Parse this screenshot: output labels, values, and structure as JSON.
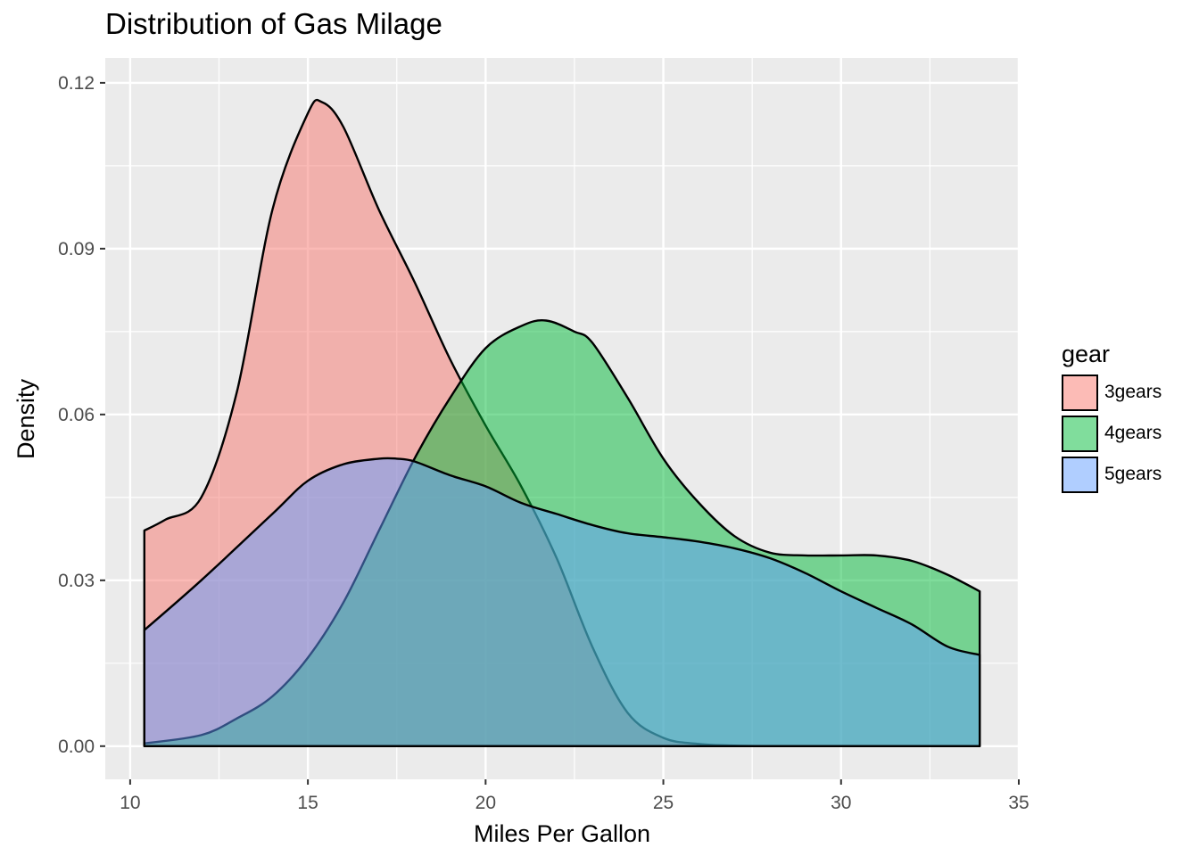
{
  "chart_data": {
    "type": "area",
    "title": "Distribution of Gas Milage",
    "xlabel": "Miles Per Gallon",
    "ylabel": "Density",
    "xlim": [
      9.3,
      35.0
    ],
    "ylim": [
      -0.006,
      0.1245
    ],
    "x_ticks": [
      10,
      15,
      20,
      25,
      30,
      35
    ],
    "y_ticks": [
      0.0,
      0.03,
      0.06,
      0.09,
      0.12
    ],
    "x_tick_labels": [
      "10",
      "15",
      "20",
      "25",
      "30",
      "35"
    ],
    "y_tick_labels": [
      "0.00",
      "0.03",
      "0.06",
      "0.09",
      "0.12"
    ],
    "grid": true,
    "legend_title": "gear",
    "legend_position": "right",
    "series": [
      {
        "name": "3gears",
        "color": "#F8766D",
        "x": [
          10.4,
          11.0,
          12.0,
          13.0,
          14.0,
          15.0,
          15.4,
          16.0,
          17.0,
          18.0,
          19.0,
          20.0,
          21.0,
          22.0,
          23.0,
          24.0,
          25.0,
          26.0,
          27.0,
          28.0,
          30.0,
          33.9
        ],
        "y": [
          0.039,
          0.041,
          0.045,
          0.064,
          0.097,
          0.1145,
          0.1165,
          0.112,
          0.097,
          0.084,
          0.07,
          0.058,
          0.047,
          0.034,
          0.018,
          0.006,
          0.0015,
          0.0004,
          0.0001,
          0.0,
          0.0,
          0.0
        ]
      },
      {
        "name": "4gears",
        "color": "#00BA38",
        "x": [
          10.4,
          12.0,
          13.0,
          14.0,
          15.0,
          16.0,
          17.0,
          18.0,
          19.0,
          20.0,
          21.0,
          21.7,
          22.5,
          23.0,
          24.0,
          25.0,
          26.0,
          27.0,
          28.0,
          29.0,
          30.0,
          31.0,
          32.0,
          33.0,
          33.9
        ],
        "y": [
          0.0005,
          0.002,
          0.005,
          0.009,
          0.016,
          0.026,
          0.039,
          0.052,
          0.063,
          0.072,
          0.076,
          0.077,
          0.075,
          0.073,
          0.063,
          0.052,
          0.044,
          0.038,
          0.035,
          0.0345,
          0.0345,
          0.0345,
          0.0335,
          0.031,
          0.028
        ]
      },
      {
        "name": "5gears",
        "color": "#619CFF",
        "x": [
          10.4,
          12.0,
          14.0,
          15.0,
          16.0,
          17.0,
          17.5,
          18.0,
          19.0,
          20.0,
          21.0,
          22.0,
          23.0,
          24.0,
          25.0,
          26.0,
          27.0,
          28.0,
          29.0,
          30.0,
          31.0,
          32.0,
          33.0,
          33.9
        ],
        "y": [
          0.021,
          0.03,
          0.042,
          0.048,
          0.051,
          0.052,
          0.052,
          0.0515,
          0.049,
          0.047,
          0.044,
          0.042,
          0.04,
          0.0385,
          0.0378,
          0.037,
          0.0358,
          0.034,
          0.0313,
          0.028,
          0.025,
          0.022,
          0.018,
          0.0165
        ]
      }
    ]
  }
}
